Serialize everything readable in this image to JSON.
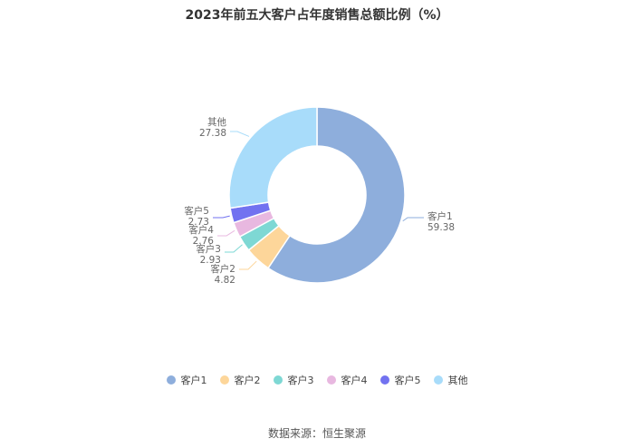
{
  "chart_data": {
    "type": "pie",
    "subtype": "donut",
    "title": "2023年前五大客户占年度销售总额比例（%）",
    "categories": [
      "客户1",
      "客户2",
      "客户3",
      "客户4",
      "客户5",
      "其他"
    ],
    "values": [
      59.38,
      4.82,
      2.93,
      2.76,
      2.73,
      27.38
    ],
    "value_labels": [
      "59.38",
      "4.82",
      "2.93",
      "2.76",
      "2.73",
      "27.38"
    ],
    "colors": [
      "#8eaedc",
      "#fdd69a",
      "#7ed8d4",
      "#e8b8e0",
      "#7272f0",
      "#a8dcfa"
    ],
    "legend_position": "bottom"
  },
  "source": "数据来源：恒生聚源"
}
